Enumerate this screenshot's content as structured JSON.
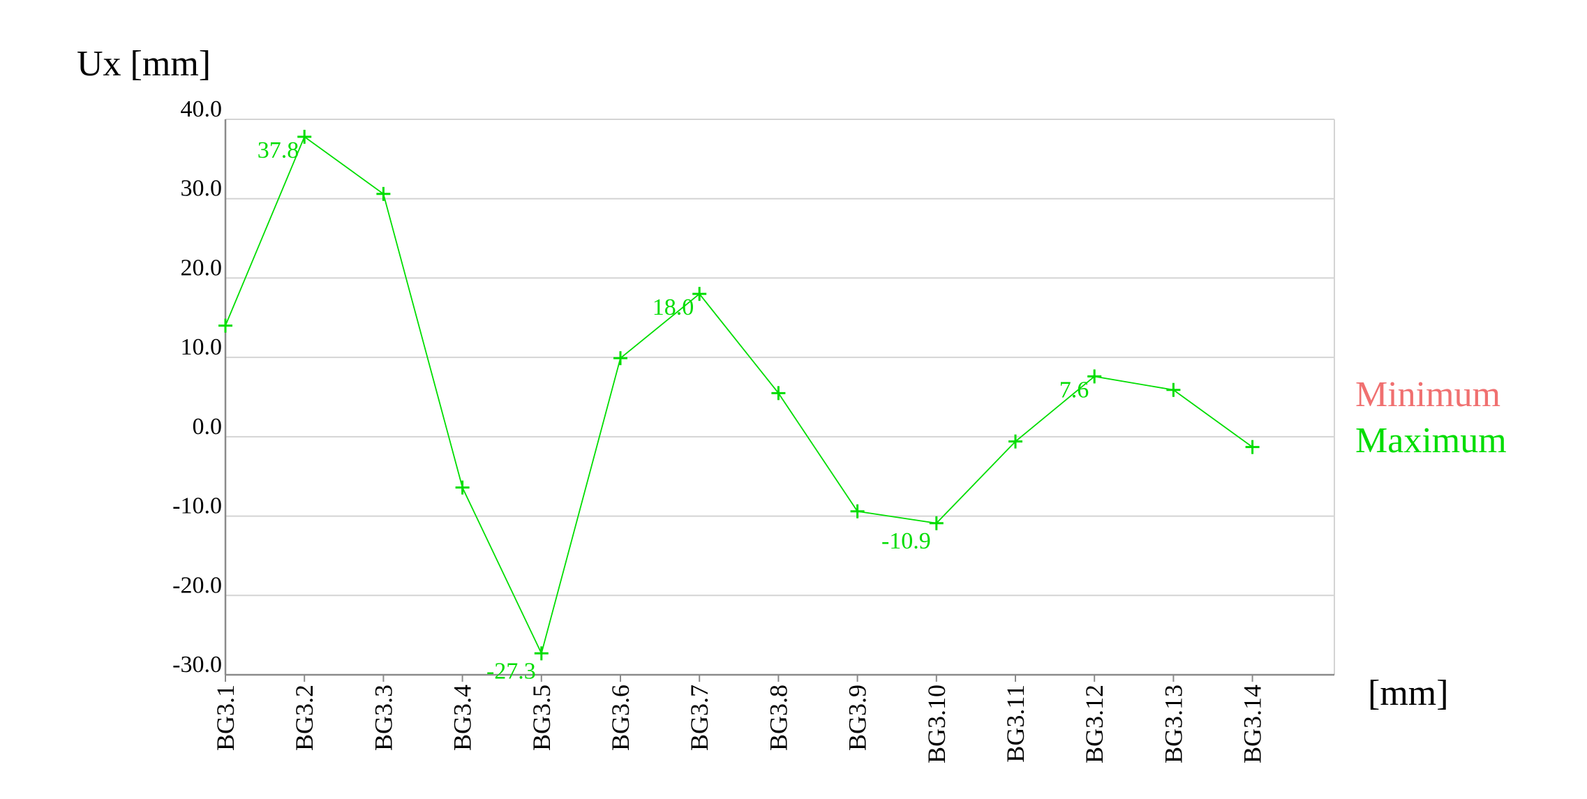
{
  "chart_data": {
    "type": "line",
    "ylabel": "Ux [mm]",
    "xlabel": "[mm]",
    "categories": [
      "BG3.1",
      "BG3.2",
      "BG3.3",
      "BG3.4",
      "BG3.5",
      "BG3.6",
      "BG3.7",
      "BG3.8",
      "BG3.9",
      "BG3.10",
      "BG3.11",
      "BG3.12",
      "BG3.13",
      "BG3.14"
    ],
    "ylim": [
      -30,
      40
    ],
    "yticks": [
      "40.0",
      "30.0",
      "20.0",
      "10.0",
      "0.0",
      "-10.0",
      "-20.0",
      "-30.0"
    ],
    "ytick_values": [
      40,
      30,
      20,
      10,
      0,
      -10,
      -20,
      -30
    ],
    "grid": "horizontal",
    "legend": [
      "Minimum",
      "Maximum"
    ],
    "legend_position": "right",
    "series": [
      {
        "name": "Maximum",
        "color": "#00dd00",
        "values": [
          14.0,
          37.8,
          30.6,
          -6.4,
          -27.3,
          9.9,
          18.0,
          5.5,
          -9.4,
          -10.9,
          -0.6,
          7.6,
          5.9,
          -1.3
        ]
      }
    ],
    "data_labels": [
      {
        "index": 1,
        "text": "37.8"
      },
      {
        "index": 4,
        "text": "-27.3"
      },
      {
        "index": 6,
        "text": "18.0"
      },
      {
        "index": 9,
        "text": "-10.9"
      },
      {
        "index": 11,
        "text": "7.6"
      }
    ],
    "legend_colors": {
      "minimum": "#f07070",
      "maximum": "#00dd00"
    },
    "grid_color": "#d4d4d4",
    "axis_color": "#8a8a8a"
  }
}
